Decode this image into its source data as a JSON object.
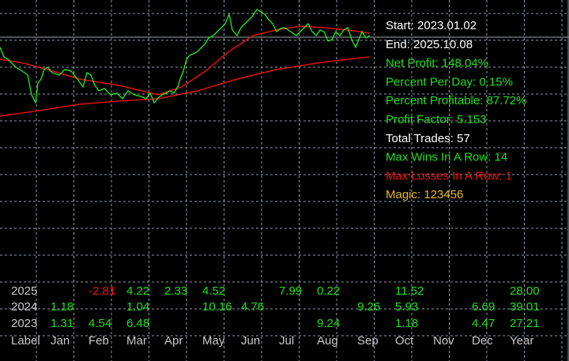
{
  "stats": [
    {
      "text": "Start: 2023.01.02",
      "color": "#ffffff"
    },
    {
      "text": "End: 2025.10.08",
      "color": "#ffffff"
    },
    {
      "text": "Net Profit: 148.04%",
      "color": "#22dd22"
    },
    {
      "text": "Percent Per Day: 0.15%",
      "color": "#22dd22"
    },
    {
      "text": "Percent Profitable: 87.72%",
      "color": "#22dd22"
    },
    {
      "text": "Profit Factor: 5.153",
      "color": "#22dd22"
    },
    {
      "text": "Total Trades: 57",
      "color": "#ffffff"
    },
    {
      "text": "Max Wins In A Row: 14",
      "color": "#22dd22"
    },
    {
      "text": "Max Losses In A Row: 1",
      "color": "#ee1111"
    },
    {
      "text": "Magic: 123456",
      "color": "#e8b820"
    }
  ],
  "table": {
    "header": [
      "Label",
      "Jan",
      "Feb",
      "Mar",
      "Apr",
      "May",
      "Jun",
      "Jul",
      "Aug",
      "Sep",
      "Oct",
      "Nov",
      "Dec",
      "Year"
    ],
    "rows": [
      [
        "2025",
        null,
        "-2.81",
        "4.22",
        "2.33",
        "4.52",
        null,
        "7.99",
        "0.22",
        null,
        "11.52",
        null,
        null,
        "28.00"
      ],
      [
        "2024",
        "1.18",
        null,
        "1.04",
        null,
        "10.16",
        "4.76",
        null,
        null,
        "9.26",
        "5.93",
        null,
        "6.69",
        "39.01"
      ],
      [
        "2023",
        "1.31",
        "4.54",
        "6.48",
        null,
        null,
        null,
        null,
        "9.24",
        null,
        "1.18",
        null,
        "4.47",
        "27.21"
      ]
    ]
  }
}
